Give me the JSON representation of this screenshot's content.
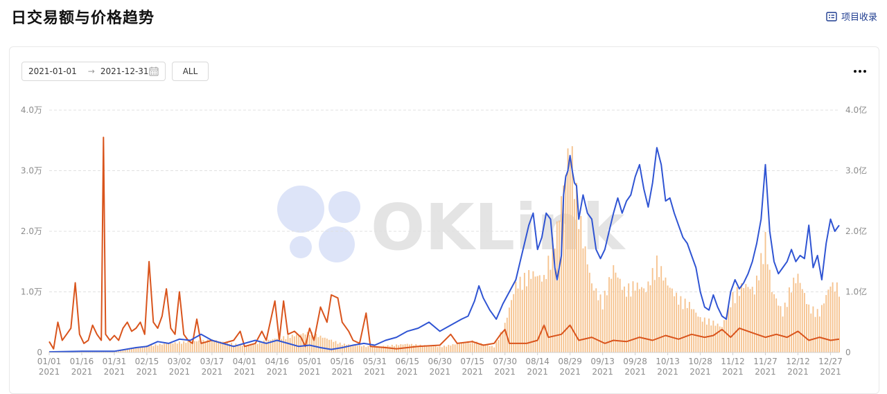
{
  "page": {
    "title": "日交易额与价格趋势",
    "collect_label": "项目收录"
  },
  "controls": {
    "start_date": "2021-01-01",
    "end_date": "2021-12-31",
    "all_label": "ALL"
  },
  "watermark": {
    "text": "OKLink"
  },
  "colors": {
    "bar": "#f6c38f",
    "red_line": "#d9541c",
    "blue_line": "#2f54d3",
    "grid": "#e0e0e0",
    "axis_text": "#8c8c8c"
  },
  "chart_data": {
    "type": "bar",
    "title": "",
    "ylim_left": [
      0,
      40000
    ],
    "ylim_right": [
      0,
      400000000
    ],
    "left_ticks": [
      "0",
      "1.0万",
      "2.0万",
      "3.0万",
      "4.0万"
    ],
    "right_ticks": [
      "0",
      "1.0亿",
      "2.0亿",
      "3.0亿",
      "4.0亿"
    ],
    "x_ticks": [
      {
        "md": "01/01",
        "year": "2021",
        "day": 0
      },
      {
        "md": "01/16",
        "year": "2021",
        "day": 15
      },
      {
        "md": "01/31",
        "year": "2021",
        "day": 30
      },
      {
        "md": "02/15",
        "year": "2021",
        "day": 45
      },
      {
        "md": "03/02",
        "year": "2021",
        "day": 60
      },
      {
        "md": "03/17",
        "year": "2021",
        "day": 75
      },
      {
        "md": "04/01",
        "year": "2021",
        "day": 90
      },
      {
        "md": "04/16",
        "year": "2021",
        "day": 105
      },
      {
        "md": "05/01",
        "year": "2021",
        "day": 120
      },
      {
        "md": "05/16",
        "year": "2021",
        "day": 135
      },
      {
        "md": "05/31",
        "year": "2021",
        "day": 150
      },
      {
        "md": "06/15",
        "year": "2021",
        "day": 165
      },
      {
        "md": "06/30",
        "year": "2021",
        "day": 180
      },
      {
        "md": "07/15",
        "year": "2021",
        "day": 195
      },
      {
        "md": "07/30",
        "year": "2021",
        "day": 210
      },
      {
        "md": "08/14",
        "year": "2021",
        "day": 225
      },
      {
        "md": "08/29",
        "year": "2021",
        "day": 240
      },
      {
        "md": "09/13",
        "year": "2021",
        "day": 255
      },
      {
        "md": "09/28",
        "year": "2021",
        "day": 270
      },
      {
        "md": "10/13",
        "year": "2021",
        "day": 285
      },
      {
        "md": "10/28",
        "year": "2021",
        "day": 300
      },
      {
        "md": "11/12",
        "year": "2021",
        "day": 315
      },
      {
        "md": "11/27",
        "year": "2021",
        "day": 330
      },
      {
        "md": "12/12",
        "year": "2021",
        "day": 345
      },
      {
        "md": "12/27",
        "year": "2021",
        "day": 360
      }
    ],
    "series": [
      {
        "type": "bar",
        "axis": "right",
        "unit": "亿",
        "points": [
          [
            0,
            0.01
          ],
          [
            30,
            0.02
          ],
          [
            45,
            0.12
          ],
          [
            60,
            0.18
          ],
          [
            75,
            0.22
          ],
          [
            90,
            0.12
          ],
          [
            105,
            0.25
          ],
          [
            120,
            0.35
          ],
          [
            135,
            0.15
          ],
          [
            150,
            0.1
          ],
          [
            165,
            0.15
          ],
          [
            180,
            0.1
          ],
          [
            195,
            0.2
          ],
          [
            205,
            0.1
          ],
          [
            210,
            0.5
          ],
          [
            215,
            1.2
          ],
          [
            222,
            1.4
          ],
          [
            228,
            1.3
          ],
          [
            234,
            2.2
          ],
          [
            238,
            3.2
          ],
          [
            240,
            3.75
          ],
          [
            243,
            2.8
          ],
          [
            246,
            2.0
          ],
          [
            250,
            1.2
          ],
          [
            255,
            0.9
          ],
          [
            260,
            1.5
          ],
          [
            265,
            1.1
          ],
          [
            270,
            1.2
          ],
          [
            275,
            1.1
          ],
          [
            280,
            1.6
          ],
          [
            285,
            1.2
          ],
          [
            290,
            0.95
          ],
          [
            295,
            0.85
          ],
          [
            300,
            0.6
          ],
          [
            305,
            0.55
          ],
          [
            310,
            0.45
          ],
          [
            315,
            1.0
          ],
          [
            320,
            1.2
          ],
          [
            325,
            1.1
          ],
          [
            330,
            2.0
          ],
          [
            333,
            1.1
          ],
          [
            338,
            0.7
          ],
          [
            342,
            1.2
          ],
          [
            345,
            1.35
          ],
          [
            350,
            0.8
          ],
          [
            355,
            0.7
          ],
          [
            360,
            1.2
          ],
          [
            364,
            1.15
          ]
        ]
      },
      {
        "type": "line",
        "axis": "left",
        "color": "#d9541c",
        "unit": "万",
        "points": [
          [
            0,
            0.18
          ],
          [
            2,
            0.06
          ],
          [
            4,
            0.5
          ],
          [
            6,
            0.2
          ],
          [
            8,
            0.3
          ],
          [
            10,
            0.4
          ],
          [
            12,
            1.15
          ],
          [
            14,
            0.3
          ],
          [
            16,
            0.15
          ],
          [
            18,
            0.2
          ],
          [
            20,
            0.45
          ],
          [
            22,
            0.3
          ],
          [
            24,
            0.2
          ],
          [
            25,
            3.55
          ],
          [
            26,
            0.3
          ],
          [
            28,
            0.2
          ],
          [
            30,
            0.28
          ],
          [
            32,
            0.2
          ],
          [
            34,
            0.4
          ],
          [
            36,
            0.5
          ],
          [
            38,
            0.35
          ],
          [
            40,
            0.4
          ],
          [
            42,
            0.5
          ],
          [
            44,
            0.3
          ],
          [
            46,
            1.5
          ],
          [
            48,
            0.5
          ],
          [
            50,
            0.4
          ],
          [
            52,
            0.6
          ],
          [
            54,
            1.05
          ],
          [
            56,
            0.4
          ],
          [
            58,
            0.3
          ],
          [
            60,
            1.0
          ],
          [
            62,
            0.3
          ],
          [
            64,
            0.2
          ],
          [
            66,
            0.15
          ],
          [
            68,
            0.55
          ],
          [
            70,
            0.15
          ],
          [
            75,
            0.2
          ],
          [
            80,
            0.15
          ],
          [
            85,
            0.2
          ],
          [
            88,
            0.35
          ],
          [
            90,
            0.1
          ],
          [
            95,
            0.15
          ],
          [
            98,
            0.35
          ],
          [
            100,
            0.2
          ],
          [
            104,
            0.85
          ],
          [
            106,
            0.2
          ],
          [
            108,
            0.85
          ],
          [
            110,
            0.3
          ],
          [
            113,
            0.35
          ],
          [
            116,
            0.25
          ],
          [
            118,
            0.1
          ],
          [
            120,
            0.4
          ],
          [
            122,
            0.2
          ],
          [
            125,
            0.75
          ],
          [
            128,
            0.5
          ],
          [
            130,
            0.95
          ],
          [
            133,
            0.9
          ],
          [
            135,
            0.5
          ],
          [
            138,
            0.35
          ],
          [
            140,
            0.2
          ],
          [
            143,
            0.15
          ],
          [
            146,
            0.65
          ],
          [
            148,
            0.1
          ],
          [
            155,
            0.08
          ],
          [
            160,
            0.06
          ],
          [
            170,
            0.1
          ],
          [
            180,
            0.12
          ],
          [
            185,
            0.3
          ],
          [
            188,
            0.15
          ],
          [
            195,
            0.18
          ],
          [
            200,
            0.12
          ],
          [
            205,
            0.15
          ],
          [
            208,
            0.3
          ],
          [
            210,
            0.38
          ],
          [
            212,
            0.15
          ],
          [
            220,
            0.15
          ],
          [
            225,
            0.2
          ],
          [
            228,
            0.45
          ],
          [
            230,
            0.25
          ],
          [
            236,
            0.3
          ],
          [
            240,
            0.45
          ],
          [
            244,
            0.2
          ],
          [
            250,
            0.25
          ],
          [
            256,
            0.15
          ],
          [
            260,
            0.2
          ],
          [
            266,
            0.18
          ],
          [
            272,
            0.25
          ],
          [
            278,
            0.2
          ],
          [
            284,
            0.28
          ],
          [
            290,
            0.22
          ],
          [
            296,
            0.3
          ],
          [
            302,
            0.25
          ],
          [
            306,
            0.28
          ],
          [
            310,
            0.38
          ],
          [
            314,
            0.25
          ],
          [
            318,
            0.4
          ],
          [
            322,
            0.35
          ],
          [
            326,
            0.3
          ],
          [
            330,
            0.25
          ],
          [
            335,
            0.3
          ],
          [
            340,
            0.25
          ],
          [
            345,
            0.35
          ],
          [
            350,
            0.2
          ],
          [
            355,
            0.25
          ],
          [
            360,
            0.2
          ],
          [
            364,
            0.22
          ]
        ]
      },
      {
        "type": "line",
        "axis": "left",
        "color": "#2f54d3",
        "unit": "万",
        "points": [
          [
            0,
            0.01
          ],
          [
            15,
            0.02
          ],
          [
            30,
            0.02
          ],
          [
            40,
            0.08
          ],
          [
            45,
            0.1
          ],
          [
            50,
            0.18
          ],
          [
            55,
            0.15
          ],
          [
            60,
            0.22
          ],
          [
            65,
            0.2
          ],
          [
            70,
            0.3
          ],
          [
            75,
            0.2
          ],
          [
            80,
            0.15
          ],
          [
            85,
            0.1
          ],
          [
            90,
            0.15
          ],
          [
            95,
            0.2
          ],
          [
            100,
            0.15
          ],
          [
            105,
            0.2
          ],
          [
            110,
            0.15
          ],
          [
            115,
            0.1
          ],
          [
            120,
            0.12
          ],
          [
            125,
            0.08
          ],
          [
            130,
            0.05
          ],
          [
            135,
            0.08
          ],
          [
            140,
            0.12
          ],
          [
            145,
            0.15
          ],
          [
            150,
            0.12
          ],
          [
            155,
            0.2
          ],
          [
            160,
            0.25
          ],
          [
            165,
            0.35
          ],
          [
            170,
            0.4
          ],
          [
            175,
            0.5
          ],
          [
            180,
            0.35
          ],
          [
            185,
            0.45
          ],
          [
            190,
            0.55
          ],
          [
            193,
            0.6
          ],
          [
            196,
            0.85
          ],
          [
            198,
            1.1
          ],
          [
            200,
            0.9
          ],
          [
            203,
            0.7
          ],
          [
            206,
            0.55
          ],
          [
            209,
            0.8
          ],
          [
            212,
            1.0
          ],
          [
            215,
            1.2
          ],
          [
            217,
            1.5
          ],
          [
            219,
            1.8
          ],
          [
            221,
            2.1
          ],
          [
            223,
            2.3
          ],
          [
            225,
            1.7
          ],
          [
            227,
            1.9
          ],
          [
            229,
            2.3
          ],
          [
            231,
            2.2
          ],
          [
            233,
            1.4
          ],
          [
            234,
            1.2
          ],
          [
            236,
            1.6
          ],
          [
            237,
            2.6
          ],
          [
            238,
            2.9
          ],
          [
            239,
            3.0
          ],
          [
            240,
            3.25
          ],
          [
            241,
            3.0
          ],
          [
            242,
            2.8
          ],
          [
            243,
            2.75
          ],
          [
            244,
            2.2
          ],
          [
            246,
            2.6
          ],
          [
            248,
            2.3
          ],
          [
            250,
            2.2
          ],
          [
            252,
            1.7
          ],
          [
            254,
            1.55
          ],
          [
            256,
            1.7
          ],
          [
            258,
            2.0
          ],
          [
            260,
            2.3
          ],
          [
            262,
            2.55
          ],
          [
            264,
            2.3
          ],
          [
            266,
            2.5
          ],
          [
            268,
            2.6
          ],
          [
            270,
            2.9
          ],
          [
            272,
            3.1
          ],
          [
            274,
            2.7
          ],
          [
            276,
            2.4
          ],
          [
            278,
            2.8
          ],
          [
            280,
            3.38
          ],
          [
            282,
            3.1
          ],
          [
            284,
            2.5
          ],
          [
            286,
            2.55
          ],
          [
            288,
            2.3
          ],
          [
            290,
            2.1
          ],
          [
            292,
            1.9
          ],
          [
            294,
            1.8
          ],
          [
            296,
            1.6
          ],
          [
            298,
            1.4
          ],
          [
            300,
            1.0
          ],
          [
            302,
            0.75
          ],
          [
            304,
            0.7
          ],
          [
            306,
            0.95
          ],
          [
            308,
            0.75
          ],
          [
            310,
            0.6
          ],
          [
            312,
            0.55
          ],
          [
            314,
            1.0
          ],
          [
            316,
            1.2
          ],
          [
            318,
            1.05
          ],
          [
            320,
            1.15
          ],
          [
            322,
            1.3
          ],
          [
            324,
            1.5
          ],
          [
            326,
            1.8
          ],
          [
            328,
            2.2
          ],
          [
            330,
            3.1
          ],
          [
            332,
            2.0
          ],
          [
            334,
            1.5
          ],
          [
            336,
            1.3
          ],
          [
            338,
            1.4
          ],
          [
            340,
            1.5
          ],
          [
            342,
            1.7
          ],
          [
            344,
            1.5
          ],
          [
            346,
            1.6
          ],
          [
            348,
            1.55
          ],
          [
            350,
            2.1
          ],
          [
            352,
            1.4
          ],
          [
            354,
            1.6
          ],
          [
            356,
            1.2
          ],
          [
            358,
            1.8
          ],
          [
            360,
            2.2
          ],
          [
            362,
            2.0
          ],
          [
            364,
            2.1
          ]
        ]
      }
    ]
  }
}
